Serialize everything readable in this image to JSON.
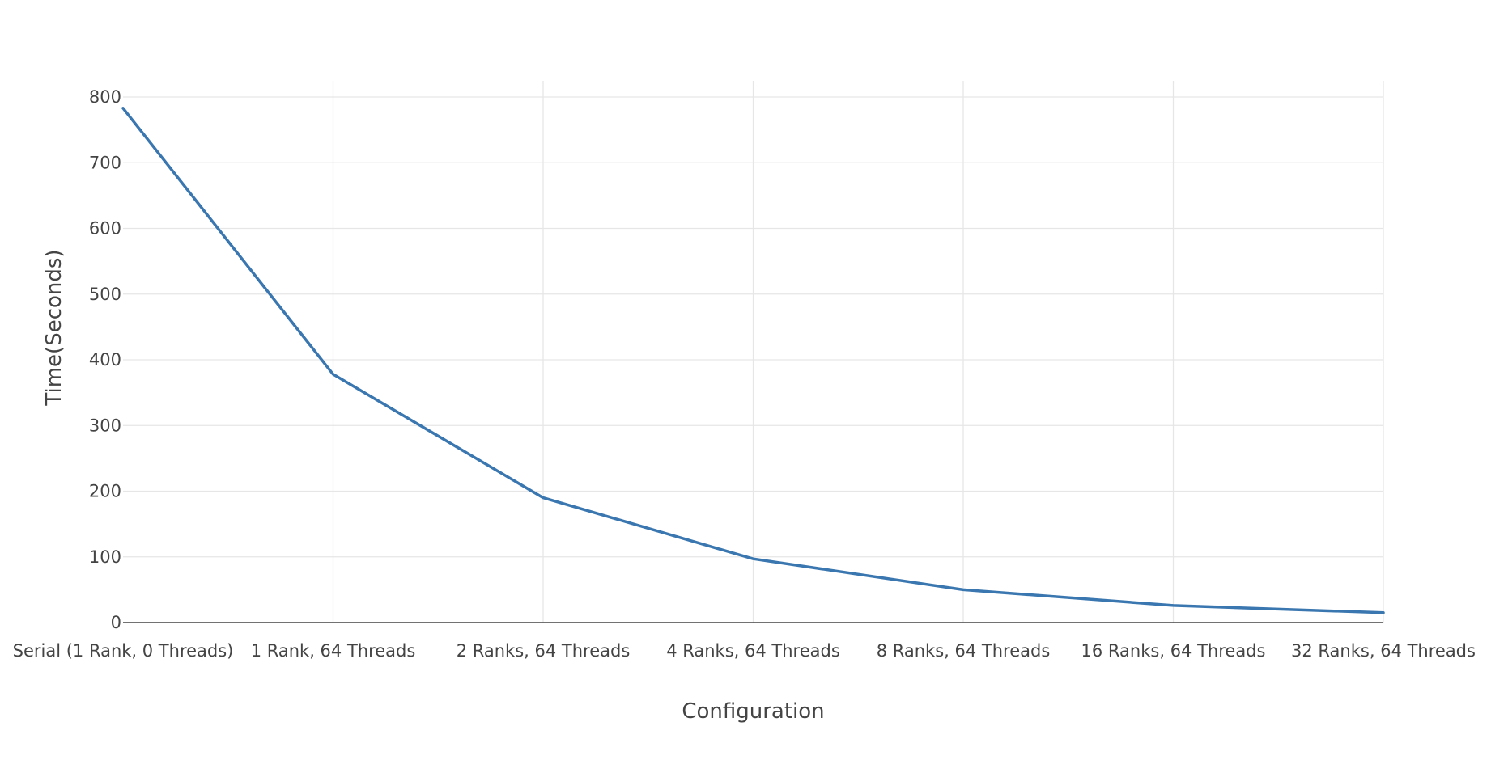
{
  "chart_data": {
    "type": "line",
    "title": "",
    "xlabel": "Configuration",
    "ylabel": "Time(Seconds)",
    "categories": [
      "Serial (1 Rank, 0 Threads)",
      "1 Rank, 64 Threads",
      "2 Ranks, 64 Threads",
      "4 Ranks, 64 Threads",
      "8 Ranks, 64 Threads",
      "16 Ranks, 64 Threads",
      "32 Ranks, 64 Threads"
    ],
    "series": [
      {
        "values": [
          783,
          378,
          190,
          97,
          50,
          26,
          15
        ],
        "color": "#3a76af"
      }
    ],
    "ylim": [
      0,
      800
    ],
    "yticks": [
      0,
      100,
      200,
      300,
      400,
      500,
      600,
      700,
      800
    ],
    "grid": true,
    "legend": "none"
  }
}
